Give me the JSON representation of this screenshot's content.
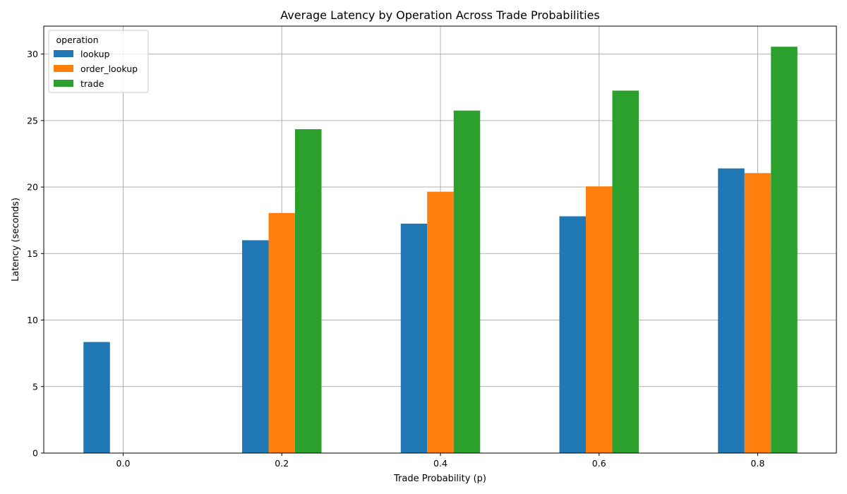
{
  "chart_data": {
    "type": "bar",
    "title": "Average Latency by Operation Across Trade Probabilities",
    "xlabel": "Trade Probability (p)",
    "ylabel": "Latency (seconds)",
    "categories": [
      "0.0",
      "0.2",
      "0.4",
      "0.6",
      "0.8"
    ],
    "series": [
      {
        "name": "lookup",
        "color": "#1f77b4",
        "values": [
          8.35,
          16.0,
          17.25,
          17.8,
          21.4
        ]
      },
      {
        "name": "order_lookup",
        "color": "#ff7f0e",
        "values": [
          null,
          18.05,
          19.65,
          20.05,
          21.05
        ]
      },
      {
        "name": "trade",
        "color": "#2ca02c",
        "values": [
          null,
          24.35,
          25.75,
          27.25,
          30.55
        ]
      }
    ],
    "ylim": [
      0,
      32.1
    ],
    "yticks": [
      0,
      5,
      10,
      15,
      20,
      25,
      30
    ],
    "grid": true,
    "legend": {
      "title": "operation",
      "placement": "top-left"
    }
  }
}
